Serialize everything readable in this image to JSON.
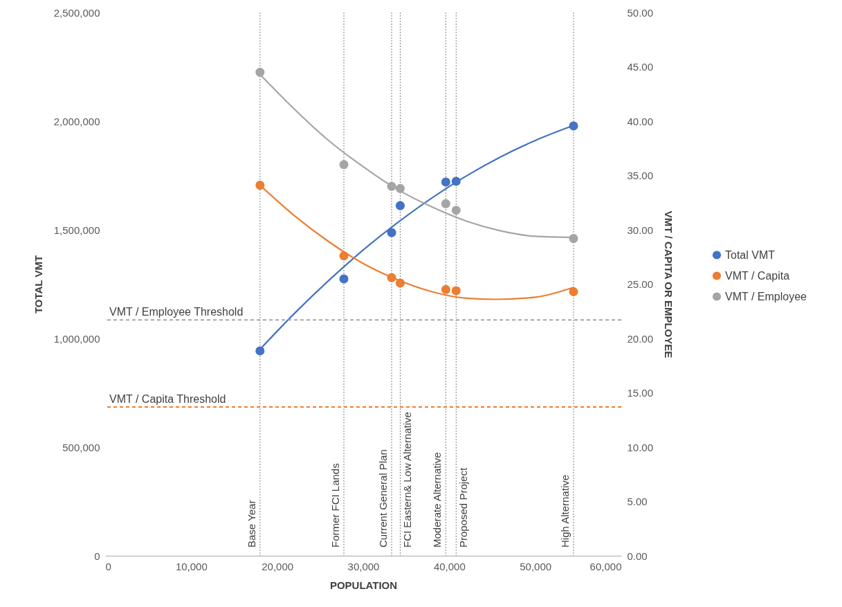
{
  "chart_data": {
    "type": "scatter",
    "xlabel": "POPULATION",
    "ylabel": "TOTAL VMT",
    "y2label": "VMT / CAPITA OR EMPLOYEE",
    "xlim": [
      0,
      60000
    ],
    "xticks": [
      0,
      {
        "value": 10000,
        "label": "10,000"
      },
      {
        "value": 20000,
        "label": "20,000"
      },
      {
        "value": 30000,
        "label": "30,000"
      },
      {
        "value": 40000,
        "label": "40,000"
      },
      {
        "value": 50000,
        "label": "50,000"
      },
      {
        "value": 60000,
        "label": "60,000"
      }
    ],
    "ylim": [
      0,
      2500000
    ],
    "yticks": [
      0,
      {
        "value": 500000,
        "label": "500,000"
      },
      {
        "value": 1000000,
        "label": "1,000,000"
      },
      {
        "value": 1500000,
        "label": "1,500,000"
      },
      {
        "value": 2000000,
        "label": "2,000,000"
      },
      {
        "value": 2500000,
        "label": "2,500,000"
      }
    ],
    "y2lim": [
      0,
      50
    ],
    "y2ticks": [
      {
        "value": 0,
        "label": "0.00"
      },
      {
        "value": 5,
        "label": "5.00"
      },
      {
        "value": 10,
        "label": "10.00"
      },
      {
        "value": 15,
        "label": "15.00"
      },
      {
        "value": 20,
        "label": "20.00"
      },
      {
        "value": 25,
        "label": "25.00"
      },
      {
        "value": 30,
        "label": "30.00"
      },
      {
        "value": 35,
        "label": "35.00"
      },
      {
        "value": 40,
        "label": "40.00"
      },
      {
        "value": 45,
        "label": "45.00"
      },
      {
        "value": 50,
        "label": "50.00"
      }
    ],
    "series": [
      {
        "name": "Total VMT",
        "color": "#4472c4",
        "x": [
          18000,
          27750,
          33300,
          34300,
          39600,
          40800,
          54450
        ],
        "values": [
          943000,
          1274000,
          1487000,
          1611000,
          1720000,
          1723000,
          1978000
        ]
      },
      {
        "name": "VMT / Capita",
        "axis": "y2",
        "color": "#ed7d31",
        "x": [
          18000,
          27750,
          33300,
          34300,
          39600,
          40800,
          54450
        ],
        "values": [
          34.1,
          27.6,
          25.6,
          25.1,
          24.5,
          24.4,
          24.3
        ]
      },
      {
        "name": "VMT / Employee",
        "axis": "y2",
        "color": "#a5a5a5",
        "x": [
          18000,
          27750,
          33300,
          34300,
          39600,
          40800,
          54450
        ],
        "values": [
          44.5,
          36.0,
          34.0,
          33.8,
          32.4,
          31.8,
          29.2
        ]
      },
      {
        "type": "line",
        "marker": "none",
        "color": "#4472c4",
        "x": [
          18000,
          22000,
          26000,
          30000,
          34000,
          38000,
          42000,
          46000,
          50000,
          54450
        ],
        "values": [
          950000,
          1115000,
          1267000,
          1407000,
          1533000,
          1647000,
          1748000,
          1836000,
          1911000,
          1980000
        ]
      },
      {
        "type": "line",
        "marker": "none",
        "axis": "y2",
        "color": "#ed7d31",
        "x": [
          18000,
          22000,
          26000,
          30000,
          34000,
          38000,
          42000,
          45500,
          50000,
          54450
        ],
        "values": [
          34.1,
          31.3,
          28.9,
          26.9,
          25.4,
          24.3,
          23.7,
          23.6,
          23.8,
          24.7
        ]
      },
      {
        "type": "line",
        "marker": "none",
        "axis": "y2",
        "color": "#a5a5a5",
        "x": [
          18000,
          22000,
          26000,
          30000,
          34000,
          38000,
          42000,
          46000,
          50000,
          54450
        ],
        "values": [
          44.3,
          41.1,
          38.2,
          35.8,
          33.7,
          32.1,
          30.8,
          29.9,
          29.4,
          29.3
        ]
      }
    ],
    "ref_lines": [
      {
        "axis": "x",
        "value": 18000,
        "label": "Base Year",
        "color": "#7f7f7f",
        "line_style": "dotted"
      },
      {
        "axis": "x",
        "value": 27750,
        "label": "Former FCI Lands",
        "color": "#7f7f7f",
        "line_style": "dotted"
      },
      {
        "axis": "x",
        "value": 33300,
        "label": "Current General Plan",
        "color": "#7f7f7f",
        "line_style": "dotted"
      },
      {
        "axis": "x",
        "value": 34300,
        "label": "FCI Eastern& Low Alternative",
        "color": "#7f7f7f",
        "line_style": "dotted"
      },
      {
        "axis": "x",
        "value": 39600,
        "label": "Moderate Alternative",
        "color": "#7f7f7f",
        "line_style": "dotted"
      },
      {
        "axis": "x",
        "value": 40800,
        "label": "Proposed Project",
        "color": "#7f7f7f",
        "line_style": "dotted"
      },
      {
        "axis": "x",
        "value": 54450,
        "label": "High Alternative",
        "color": "#7f7f7f",
        "line_style": "dotted"
      },
      {
        "axis": "y2",
        "value": 21.7,
        "label": "VMT / Employee Threshold",
        "color": "#a5a5a5",
        "line_style": "dashed"
      },
      {
        "axis": "y2",
        "value": 13.7,
        "label": "VMT / Capita Threshold",
        "color": "#ed7d31",
        "line_style": "dashed"
      }
    ],
    "legend": "right",
    "grid": false,
    "marker": "circle",
    "line_style": "solid"
  }
}
